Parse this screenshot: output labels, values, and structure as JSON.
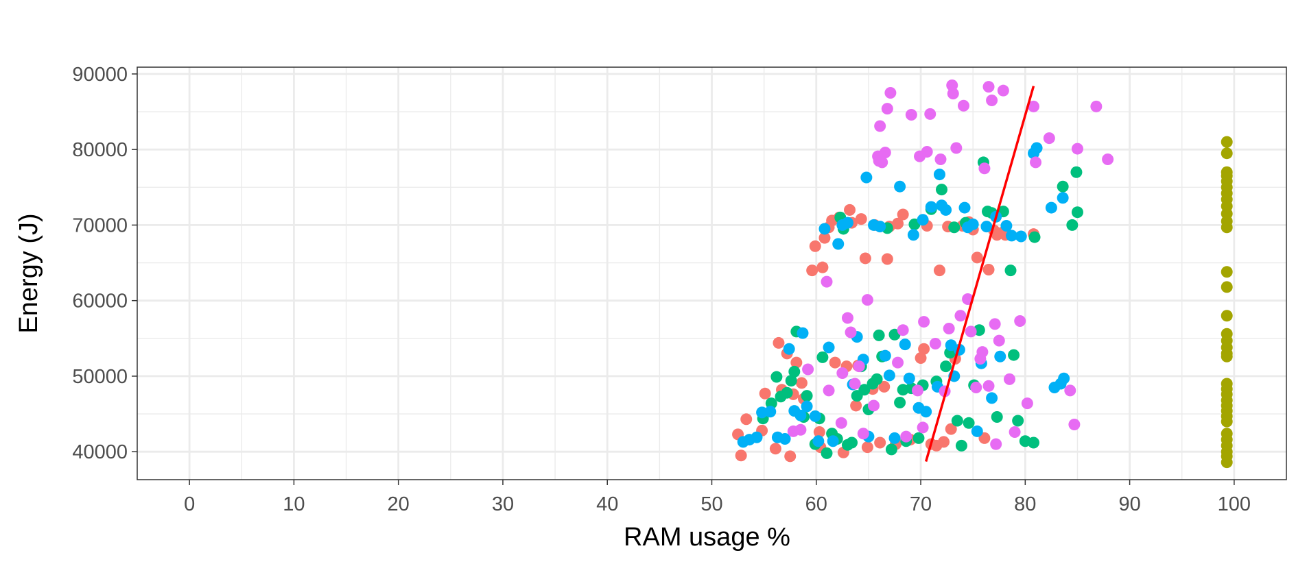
{
  "chart_data": {
    "type": "scatter",
    "title": "",
    "xlabel": "RAM usage %",
    "ylabel": "Energy (J)",
    "xlim": [
      -5,
      105
    ],
    "ylim": [
      36300,
      90900
    ],
    "x_ticks": [
      0,
      10,
      20,
      30,
      40,
      50,
      60,
      70,
      80,
      90,
      100
    ],
    "y_ticks": [
      40000,
      50000,
      60000,
      70000,
      80000,
      90000
    ],
    "x_tick_labels": [
      "0",
      "10",
      "20",
      "30",
      "40",
      "50",
      "60",
      "70",
      "80",
      "90",
      "100"
    ],
    "y_tick_labels": [
      "40000",
      "50000",
      "60000",
      "70000",
      "80000",
      "90000"
    ],
    "grid": true,
    "legend": "none",
    "colors": {
      "panel_background": "#ffffff",
      "grid": "#ebebeb",
      "border": "#333333",
      "trend_line": "#ff0000"
    },
    "series": [
      {
        "color": "#f8766d",
        "points": [
          [
            52.5,
            42300
          ],
          [
            52.8,
            39500
          ],
          [
            53.3,
            44300
          ],
          [
            54.8,
            42800
          ],
          [
            55.1,
            47700
          ],
          [
            56.1,
            40400
          ],
          [
            56.4,
            54400
          ],
          [
            56.7,
            48200
          ],
          [
            57.2,
            53000
          ],
          [
            57.5,
            39400
          ],
          [
            57.8,
            47600
          ],
          [
            58.1,
            51800
          ],
          [
            58.6,
            49100
          ],
          [
            58.8,
            47000
          ],
          [
            59.6,
            64000
          ],
          [
            59.9,
            67200
          ],
          [
            60.3,
            42600
          ],
          [
            60.4,
            40600
          ],
          [
            60.6,
            64400
          ],
          [
            60.8,
            68300
          ],
          [
            61.2,
            69700
          ],
          [
            61.5,
            70600
          ],
          [
            61.8,
            51800
          ],
          [
            62.2,
            71000
          ],
          [
            62.6,
            39900
          ],
          [
            62.9,
            51300
          ],
          [
            63.2,
            72000
          ],
          [
            63.4,
            70300
          ],
          [
            63.8,
            46100
          ],
          [
            64.0,
            51400
          ],
          [
            64.3,
            70800
          ],
          [
            64.7,
            65600
          ],
          [
            64.9,
            40600
          ],
          [
            65.4,
            48300
          ],
          [
            65.6,
            70000
          ],
          [
            66.1,
            41200
          ],
          [
            66.5,
            48600
          ],
          [
            66.8,
            65500
          ],
          [
            67.0,
            69800
          ],
          [
            67.6,
            41000
          ],
          [
            67.8,
            70200
          ],
          [
            68.3,
            71400
          ],
          [
            68.6,
            41500
          ],
          [
            69.0,
            41600
          ],
          [
            70.0,
            52400
          ],
          [
            70.3,
            53600
          ],
          [
            70.6,
            69900
          ],
          [
            71.0,
            41000
          ],
          [
            71.5,
            40800
          ],
          [
            71.8,
            64000
          ],
          [
            72.2,
            41300
          ],
          [
            72.6,
            69800
          ],
          [
            72.9,
            43000
          ],
          [
            73.3,
            52300
          ],
          [
            74.0,
            69900
          ],
          [
            74.6,
            70400
          ],
          [
            75.0,
            69400
          ],
          [
            75.4,
            65700
          ],
          [
            76.1,
            41800
          ],
          [
            76.5,
            64100
          ],
          [
            77.0,
            69300
          ],
          [
            77.3,
            68700
          ],
          [
            77.8,
            69000
          ],
          [
            78.1,
            68700
          ],
          [
            80.8,
            68800
          ]
        ]
      },
      {
        "color": "#a3a500",
        "points": [
          [
            99.3,
            81000
          ],
          [
            99.3,
            79500
          ],
          [
            99.3,
            77000
          ],
          [
            99.3,
            76500
          ],
          [
            99.3,
            75800
          ],
          [
            99.3,
            75000
          ],
          [
            99.3,
            74200
          ],
          [
            99.3,
            73400
          ],
          [
            99.3,
            72500
          ],
          [
            99.3,
            71500
          ],
          [
            99.3,
            70500
          ],
          [
            99.3,
            69700
          ],
          [
            99.3,
            63800
          ],
          [
            99.3,
            61800
          ],
          [
            99.3,
            58000
          ],
          [
            99.3,
            55600
          ],
          [
            99.3,
            54700
          ],
          [
            99.3,
            53800
          ],
          [
            99.3,
            53000
          ],
          [
            99.3,
            52600
          ],
          [
            99.3,
            49000
          ],
          [
            99.3,
            48300
          ],
          [
            99.3,
            47600
          ],
          [
            99.3,
            46800
          ],
          [
            99.3,
            46100
          ],
          [
            99.3,
            45400
          ],
          [
            99.3,
            44700
          ],
          [
            99.3,
            44000
          ],
          [
            99.3,
            42400
          ],
          [
            99.3,
            41600
          ],
          [
            99.3,
            40800
          ],
          [
            99.3,
            40000
          ],
          [
            99.3,
            39400
          ],
          [
            99.3,
            38600
          ]
        ]
      },
      {
        "color": "#00bf7d",
        "points": [
          [
            54.9,
            44400
          ],
          [
            55.7,
            46400
          ],
          [
            56.2,
            49900
          ],
          [
            56.6,
            47300
          ],
          [
            57.2,
            47800
          ],
          [
            57.6,
            49400
          ],
          [
            57.9,
            50600
          ],
          [
            58.1,
            55900
          ],
          [
            58.8,
            44600
          ],
          [
            59.1,
            47400
          ],
          [
            59.9,
            41000
          ],
          [
            60.3,
            44400
          ],
          [
            60.6,
            52500
          ],
          [
            61.0,
            39800
          ],
          [
            61.5,
            42400
          ],
          [
            62.0,
            41700
          ],
          [
            62.3,
            71000
          ],
          [
            62.6,
            69500
          ],
          [
            63.0,
            40900
          ],
          [
            63.4,
            41200
          ],
          [
            63.9,
            47400
          ],
          [
            64.3,
            51300
          ],
          [
            64.6,
            48200
          ],
          [
            65.0,
            45600
          ],
          [
            65.4,
            49000
          ],
          [
            65.8,
            49600
          ],
          [
            66.0,
            55400
          ],
          [
            66.3,
            52600
          ],
          [
            66.8,
            69600
          ],
          [
            67.2,
            40300
          ],
          [
            67.5,
            55500
          ],
          [
            68.0,
            46500
          ],
          [
            68.3,
            48200
          ],
          [
            68.6,
            41400
          ],
          [
            69.1,
            48400
          ],
          [
            69.4,
            70100
          ],
          [
            69.8,
            41800
          ],
          [
            70.2,
            48800
          ],
          [
            71.0,
            72100
          ],
          [
            71.5,
            49300
          ],
          [
            72.0,
            74700
          ],
          [
            72.4,
            51300
          ],
          [
            72.8,
            53100
          ],
          [
            73.2,
            69700
          ],
          [
            73.5,
            44100
          ],
          [
            73.9,
            40800
          ],
          [
            74.3,
            70300
          ],
          [
            74.6,
            43800
          ],
          [
            75.1,
            48800
          ],
          [
            75.6,
            56100
          ],
          [
            76.0,
            78300
          ],
          [
            76.4,
            71800
          ],
          [
            76.8,
            71600
          ],
          [
            77.3,
            44600
          ],
          [
            77.9,
            71800
          ],
          [
            78.6,
            64000
          ],
          [
            78.9,
            52800
          ],
          [
            79.3,
            44100
          ],
          [
            80.0,
            41400
          ],
          [
            80.8,
            41200
          ],
          [
            80.9,
            68400
          ],
          [
            83.6,
            75100
          ],
          [
            84.5,
            70000
          ],
          [
            84.9,
            77000
          ],
          [
            85.0,
            71700
          ]
        ]
      },
      {
        "color": "#00b0f6",
        "points": [
          [
            53.0,
            41300
          ],
          [
            53.6,
            41600
          ],
          [
            54.3,
            41900
          ],
          [
            54.8,
            45200
          ],
          [
            55.6,
            45300
          ],
          [
            56.3,
            41900
          ],
          [
            57.0,
            41700
          ],
          [
            57.4,
            53600
          ],
          [
            57.9,
            45400
          ],
          [
            58.5,
            44800
          ],
          [
            58.7,
            55700
          ],
          [
            59.1,
            46000
          ],
          [
            59.9,
            44700
          ],
          [
            60.2,
            41400
          ],
          [
            60.8,
            69500
          ],
          [
            61.2,
            53800
          ],
          [
            61.6,
            41400
          ],
          [
            62.1,
            67500
          ],
          [
            62.5,
            70000
          ],
          [
            63.0,
            70300
          ],
          [
            63.5,
            48900
          ],
          [
            63.9,
            55200
          ],
          [
            64.5,
            52200
          ],
          [
            64.8,
            76300
          ],
          [
            65.0,
            42000
          ],
          [
            65.5,
            70000
          ],
          [
            66.1,
            69800
          ],
          [
            66.6,
            52700
          ],
          [
            67.0,
            50100
          ],
          [
            67.5,
            41800
          ],
          [
            68.0,
            75100
          ],
          [
            68.5,
            54200
          ],
          [
            68.9,
            49700
          ],
          [
            69.3,
            68700
          ],
          [
            69.8,
            45800
          ],
          [
            70.2,
            70700
          ],
          [
            70.5,
            45300
          ],
          [
            71.0,
            72400
          ],
          [
            71.6,
            48600
          ],
          [
            72.0,
            72600
          ],
          [
            72.4,
            72000
          ],
          [
            72.9,
            54100
          ],
          [
            73.2,
            50000
          ],
          [
            73.7,
            53500
          ],
          [
            74.2,
            72300
          ],
          [
            74.5,
            69700
          ],
          [
            75.0,
            70100
          ],
          [
            75.4,
            42700
          ],
          [
            75.8,
            51700
          ],
          [
            76.3,
            69800
          ],
          [
            76.8,
            47100
          ],
          [
            77.2,
            71100
          ],
          [
            77.6,
            52600
          ],
          [
            78.2,
            69900
          ],
          [
            78.7,
            68600
          ],
          [
            79.6,
            68500
          ],
          [
            80.8,
            79500
          ],
          [
            81.1,
            80200
          ],
          [
            82.5,
            72300
          ],
          [
            82.8,
            48500
          ],
          [
            83.4,
            49000
          ],
          [
            83.6,
            73600
          ],
          [
            83.7,
            49700
          ],
          [
            71.8,
            76700
          ]
        ]
      },
      {
        "color": "#e76bf3",
        "points": [
          [
            57.8,
            42700
          ],
          [
            58.5,
            42900
          ],
          [
            59.2,
            50900
          ],
          [
            61.0,
            62500
          ],
          [
            61.2,
            48100
          ],
          [
            62.5,
            50400
          ],
          [
            63.0,
            57700
          ],
          [
            63.3,
            55800
          ],
          [
            63.7,
            49000
          ],
          [
            64.1,
            51300
          ],
          [
            64.5,
            42400
          ],
          [
            64.9,
            60100
          ],
          [
            65.5,
            46100
          ],
          [
            65.9,
            79100
          ],
          [
            66.1,
            83100
          ],
          [
            66.3,
            78300
          ],
          [
            66.6,
            79600
          ],
          [
            66.8,
            85400
          ],
          [
            67.1,
            87500
          ],
          [
            67.8,
            51800
          ],
          [
            68.3,
            56100
          ],
          [
            68.6,
            42000
          ],
          [
            69.1,
            84600
          ],
          [
            69.7,
            48100
          ],
          [
            69.9,
            79100
          ],
          [
            70.3,
            57200
          ],
          [
            70.6,
            79700
          ],
          [
            70.9,
            84700
          ],
          [
            71.4,
            54300
          ],
          [
            71.9,
            78700
          ],
          [
            72.3,
            48000
          ],
          [
            72.7,
            56300
          ],
          [
            73.1,
            87400
          ],
          [
            73.4,
            80200
          ],
          [
            73.8,
            58000
          ],
          [
            74.1,
            85800
          ],
          [
            74.5,
            60200
          ],
          [
            74.8,
            55900
          ],
          [
            75.3,
            48500
          ],
          [
            75.7,
            52300
          ],
          [
            76.1,
            77500
          ],
          [
            76.5,
            88300
          ],
          [
            76.8,
            86500
          ],
          [
            77.1,
            56900
          ],
          [
            77.5,
            54700
          ],
          [
            77.9,
            87800
          ],
          [
            78.5,
            49600
          ],
          [
            79.0,
            42600
          ],
          [
            79.5,
            57300
          ],
          [
            80.2,
            46400
          ],
          [
            80.8,
            85700
          ],
          [
            81.0,
            78300
          ],
          [
            82.3,
            81500
          ],
          [
            84.3,
            48100
          ],
          [
            84.7,
            43600
          ],
          [
            85.0,
            80100
          ],
          [
            86.8,
            85700
          ],
          [
            87.9,
            78700
          ],
          [
            73.0,
            88500
          ],
          [
            76.5,
            48700
          ],
          [
            77.2,
            41000
          ],
          [
            66.0,
            78500
          ],
          [
            70.2,
            43200
          ],
          [
            75.9,
            53200
          ],
          [
            62.4,
            43800
          ]
        ]
      }
    ],
    "trend_line": {
      "color": "#ff0000",
      "points": [
        [
          70.5,
          38700
        ],
        [
          80.8,
          88400
        ]
      ]
    }
  }
}
